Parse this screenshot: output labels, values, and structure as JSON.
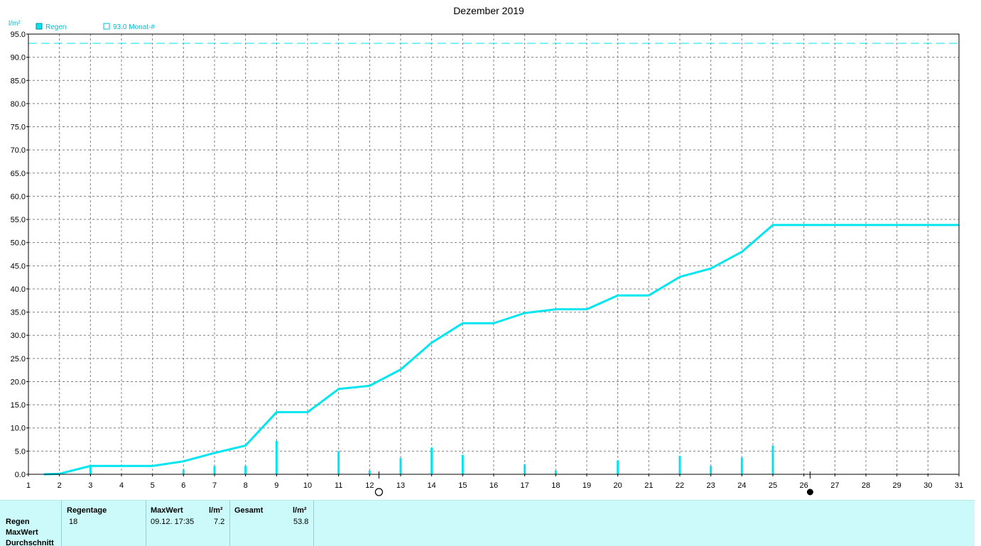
{
  "chart_data": {
    "type": "bar+line",
    "title": "Dezember 2019",
    "y_unit": "l/m²",
    "ylim": [
      0,
      95
    ],
    "y_ticks": [
      "0.0",
      "5.0",
      "10.0",
      "15.0",
      "20.0",
      "25.0",
      "30.0",
      "35.0",
      "40.0",
      "45.0",
      "50.0",
      "55.0",
      "60.0",
      "65.0",
      "70.0",
      "75.0",
      "80.0",
      "85.0",
      "90.0",
      "95.0"
    ],
    "x_ticks": [
      "1",
      "2",
      "3",
      "4",
      "5",
      "6",
      "7",
      "8",
      "9",
      "10",
      "11",
      "12",
      "13",
      "14",
      "15",
      "16",
      "17",
      "18",
      "19",
      "20",
      "21",
      "22",
      "23",
      "24",
      "25",
      "26",
      "27",
      "28",
      "29",
      "30",
      "31"
    ],
    "xlim": [
      1,
      31
    ],
    "grid": true,
    "legend": [
      {
        "name": "Regen",
        "type": "bar"
      },
      {
        "name": "93.0 Monat-#",
        "type": "reference"
      }
    ],
    "reference_line": {
      "value": 93.0
    },
    "daily_rain": {
      "x": [
        3,
        6,
        7,
        8,
        9,
        11,
        12,
        13,
        14,
        15,
        17,
        18,
        20,
        22,
        23,
        24,
        25
      ],
      "values": [
        1.8,
        1.0,
        1.8,
        1.8,
        7.2,
        5.0,
        0.8,
        3.5,
        5.8,
        4.2,
        2.2,
        0.8,
        3.0,
        4.0,
        1.8,
        3.6,
        6.2
      ]
    },
    "cumulative": {
      "x": [
        1.5,
        2,
        3,
        4,
        5,
        6,
        7,
        8,
        9,
        10,
        11,
        12,
        13,
        14,
        15,
        16,
        17,
        18,
        19,
        20,
        21,
        22,
        23,
        24,
        25,
        26,
        27,
        28,
        29,
        30,
        31
      ],
      "values": [
        0,
        0.1,
        1.8,
        1.8,
        1.8,
        2.8,
        4.6,
        6.2,
        13.4,
        13.4,
        18.4,
        19.1,
        22.6,
        28.4,
        32.6,
        32.6,
        34.8,
        35.6,
        35.6,
        38.6,
        38.6,
        42.6,
        44.4,
        48.0,
        53.8,
        53.8,
        53.8,
        53.8,
        53.8,
        53.8,
        53.8
      ]
    },
    "moon_phases": [
      {
        "x": 12.3,
        "phase": "full"
      },
      {
        "x": 26.2,
        "phase": "new"
      }
    ]
  },
  "colors": {
    "series": "#00e5ef",
    "grid": "#808080",
    "axis": "#000000",
    "legend_text": "#00bcd4",
    "table_bg": "#ccf9f9"
  },
  "table": {
    "row_labels": [
      "Regen",
      "MaxWert",
      "Durchschnitt"
    ],
    "regentage_header": "Regentage",
    "regentage_value": "18",
    "maxwert_header": "MaxWert",
    "maxwert_unit": "l/m²",
    "maxwert_date": "09.12.  17:35",
    "maxwert_value": "7.2",
    "gesamt_header": "Gesamt",
    "gesamt_unit": "l/m²",
    "gesamt_value": "53.8"
  }
}
